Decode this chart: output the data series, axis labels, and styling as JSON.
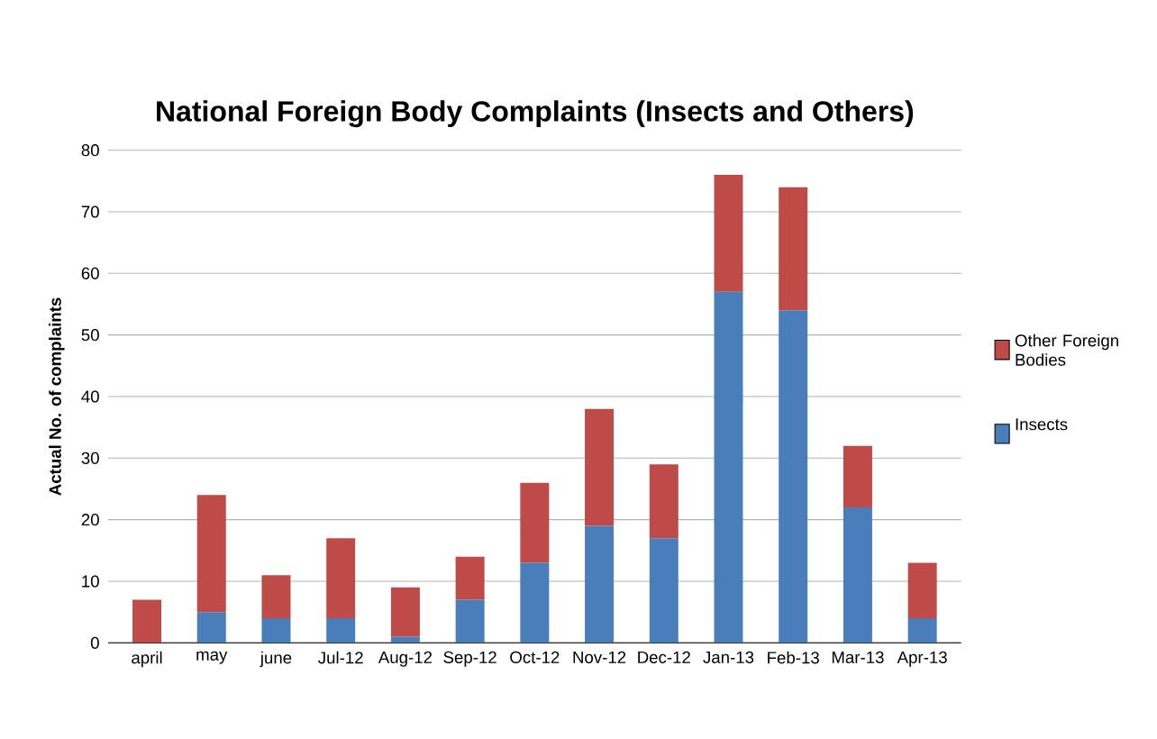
{
  "chart_data": {
    "type": "bar",
    "stacked": true,
    "title": "National Foreign Body Complaints (Insects and Others)",
    "ylabel": "Actual No. of complaints",
    "categories": [
      "april",
      "may",
      "june",
      "Jul-12",
      "Aug-12",
      "Sep-12",
      "Oct-12",
      "Nov-12",
      "Dec-12",
      "Jan-13",
      "Feb-13",
      "Mar-13",
      "Apr-13"
    ],
    "series": [
      {
        "name": "Insects",
        "color": "#4a7ebb",
        "values": [
          0,
          5,
          4,
          4,
          1,
          7,
          13,
          19,
          17,
          57,
          54,
          22,
          4
        ]
      },
      {
        "name": "Other Foreign Bodies",
        "color": "#be4b48",
        "values": [
          7,
          19,
          7,
          13,
          8,
          7,
          13,
          19,
          12,
          19,
          20,
          10,
          9
        ]
      }
    ],
    "ylim": [
      0,
      80
    ],
    "yticks": [
      0,
      10,
      20,
      30,
      40,
      50,
      60,
      70,
      80
    ],
    "grid": "y",
    "legend": "right"
  }
}
